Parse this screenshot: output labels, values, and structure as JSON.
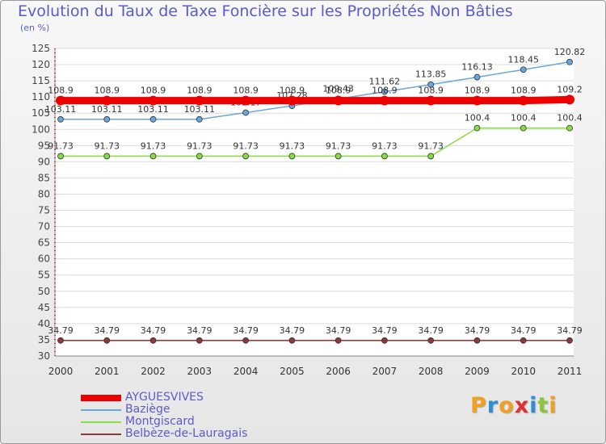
{
  "title": "Evolution du Taux de Taxe Foncière sur les Propriétés Non Bâties",
  "unit_label": "(en %)",
  "logo": {
    "letters": [
      "P",
      "r",
      "o",
      "x",
      "i",
      "t",
      "i"
    ],
    "colors": [
      "#f0a020",
      "#2a8fd6",
      "#f0a020",
      "#e03030",
      "#2a8fd6",
      "#8cc63f",
      "#f0a020"
    ]
  },
  "chart_data": {
    "type": "line",
    "title": "Evolution du Taux de Taxe Foncière sur les Propriétés Non Bâties",
    "ylabel": "(en %)",
    "xlabel": "",
    "x": [
      "2000",
      "2001",
      "2002",
      "2003",
      "2004",
      "2005",
      "2006",
      "2007",
      "2008",
      "2009",
      "2010",
      "2011"
    ],
    "ylim": [
      30,
      125
    ],
    "yticks": [
      30,
      35,
      40,
      45,
      50,
      55,
      60,
      65,
      70,
      75,
      80,
      85,
      90,
      95,
      100,
      105,
      110,
      115,
      120,
      125
    ],
    "grid": "horizontal",
    "legend_position": "bottom-left",
    "series": [
      {
        "name": "AYGUESVIVES",
        "color": "#ee0000",
        "values": [
          108.9,
          108.9,
          108.9,
          108.9,
          108.9,
          108.9,
          108.9,
          108.9,
          108.9,
          108.9,
          108.9,
          109.2
        ],
        "labels": [
          "108.9",
          "108.9",
          "108.9",
          "108.9",
          "108.9",
          "108.9",
          "108.9",
          "108.9",
          "108.9",
          "108.9",
          "108.9",
          "109.2"
        ]
      },
      {
        "name": "Baziège",
        "color": "#6aa6d8",
        "values": [
          103.11,
          103.11,
          103.11,
          103.11,
          105.17,
          107.28,
          109.43,
          111.62,
          113.85,
          116.13,
          118.45,
          120.82
        ],
        "labels": [
          "103.11",
          "103.11",
          "103.11",
          "103.11",
          "105.17",
          "107.28",
          "109.43",
          "111.62",
          "113.85",
          "116.13",
          "118.45",
          "120.82"
        ]
      },
      {
        "name": "Montgiscard",
        "color": "#88dd44",
        "values": [
          91.73,
          91.73,
          91.73,
          91.73,
          91.73,
          91.73,
          91.73,
          91.73,
          91.73,
          100.4,
          100.4,
          100.4
        ],
        "labels": [
          "91.73",
          "91.73",
          "91.73",
          "91.73",
          "91.73",
          "91.73",
          "91.73",
          "91.73",
          "91.73",
          "100.4",
          "100.4",
          "100.4"
        ]
      },
      {
        "name": "Belbèze-de-Lauragais",
        "color": "#8a3a3a",
        "values": [
          34.79,
          34.79,
          34.79,
          34.79,
          34.79,
          34.79,
          34.79,
          34.79,
          34.79,
          34.79,
          34.79,
          34.79
        ],
        "labels": [
          "34.79",
          "34.79",
          "34.79",
          "34.79",
          "34.79",
          "34.79",
          "34.79",
          "34.79",
          "34.79",
          "34.79",
          "34.79",
          "34.79"
        ]
      }
    ]
  }
}
